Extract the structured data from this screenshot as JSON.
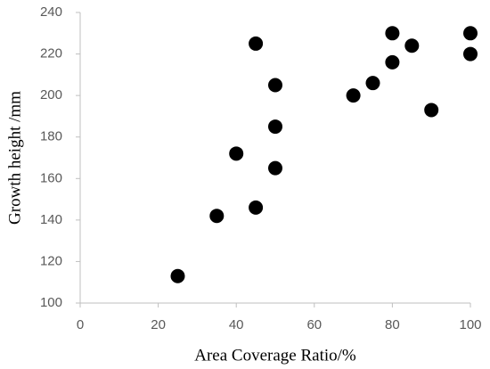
{
  "chart_data": {
    "type": "scatter",
    "x_label": "Area Coverage Ratio/%",
    "y_label": "Growth height /mm",
    "series": [
      {
        "color": "#000000",
        "x": [
          25,
          35,
          40,
          45,
          45,
          50,
          50,
          50,
          70,
          75,
          80,
          80,
          85,
          90,
          100,
          100
        ],
        "values": [
          113,
          142,
          172,
          225,
          146,
          205,
          185,
          165,
          200,
          206,
          230,
          216,
          224,
          193,
          230,
          220
        ]
      }
    ],
    "xlim": [
      0,
      100
    ],
    "xticks": [
      0,
      20,
      40,
      60,
      80,
      100
    ],
    "ylim": [
      100,
      240
    ],
    "yticks": [
      100,
      120,
      140,
      160,
      180,
      200,
      220,
      240
    ],
    "grid": false
  }
}
